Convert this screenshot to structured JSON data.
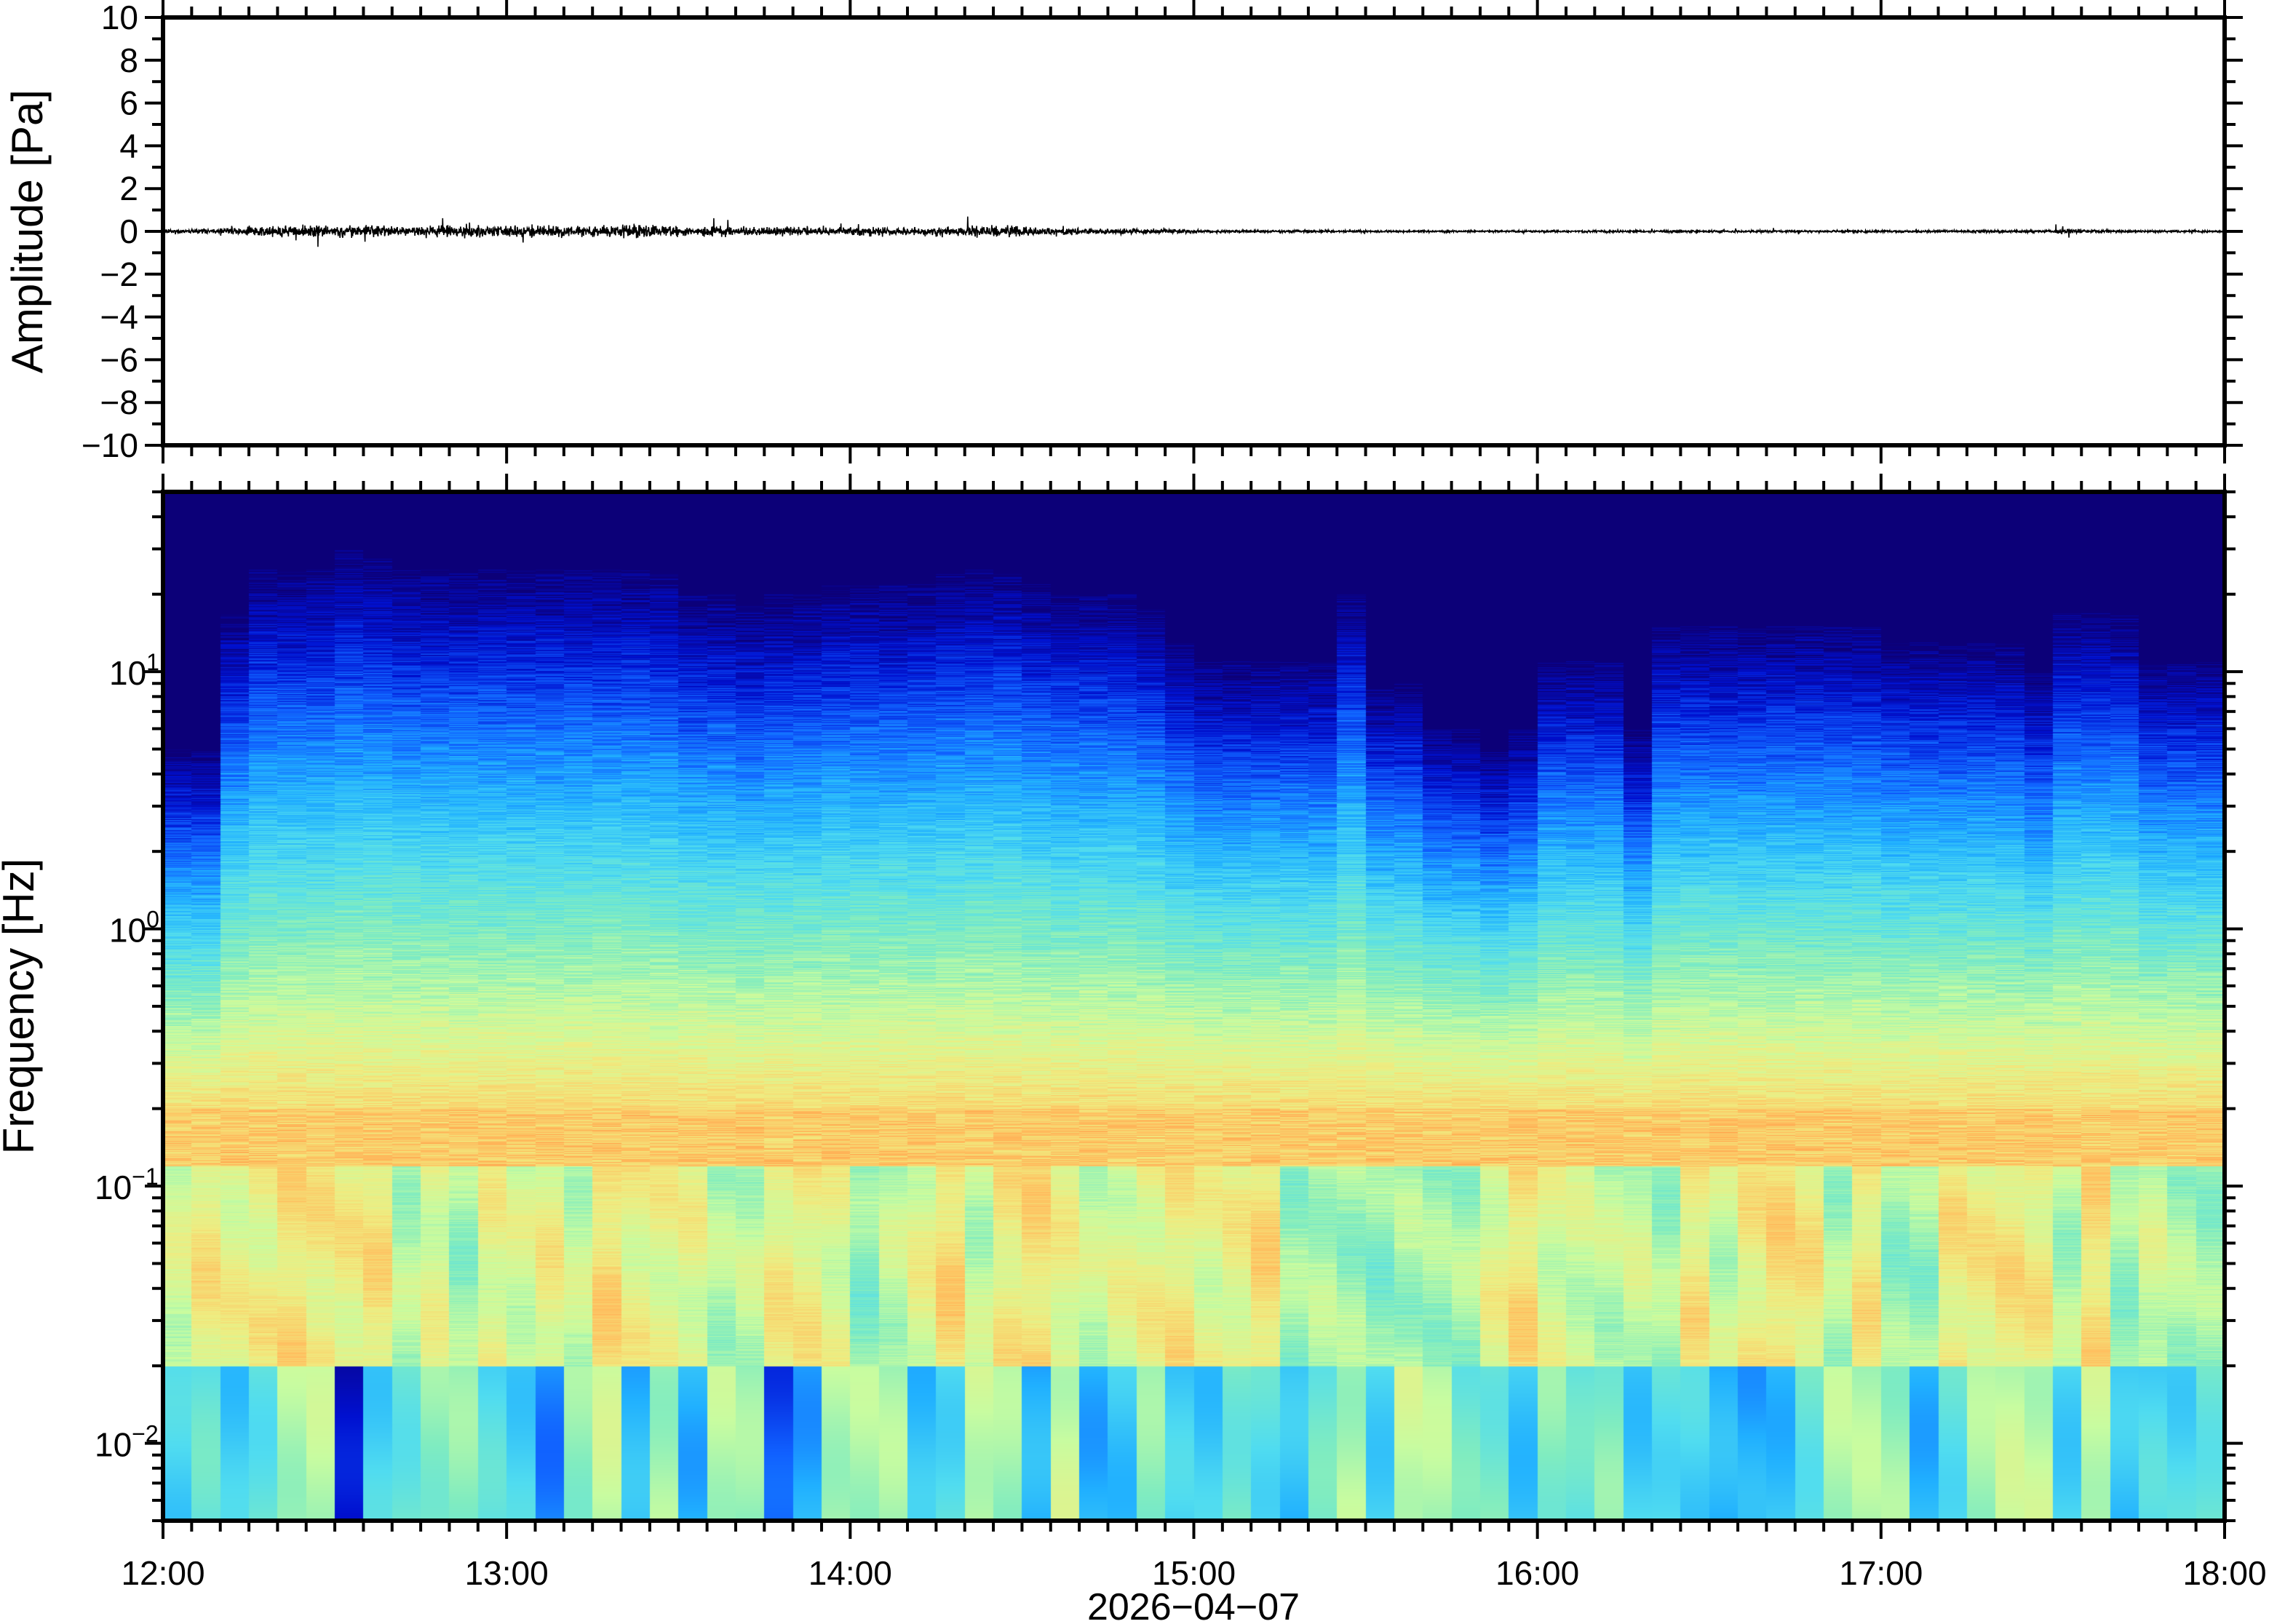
{
  "chart_data": [
    {
      "type": "line",
      "panel": "waveform",
      "ylabel": "Amplitude [Pa]",
      "ylim": [
        -10,
        10
      ],
      "yticks": [
        "10",
        "8",
        "6",
        "4",
        "2",
        "0",
        "−2",
        "−4",
        "−6",
        "−8",
        "−10"
      ],
      "ytick_values": [
        10,
        8,
        6,
        4,
        2,
        0,
        -2,
        -4,
        -6,
        -8,
        -10
      ],
      "xlim": [
        "12:00",
        "18:00"
      ],
      "line_color": "#000000",
      "amplitude_envelope_pa_per_5min": [
        0.1,
        0.12,
        0.2,
        0.28,
        0.3,
        0.32,
        0.3,
        0.3,
        0.28,
        0.3,
        0.32,
        0.3,
        0.3,
        0.3,
        0.28,
        0.32,
        0.35,
        0.3,
        0.25,
        0.25,
        0.22,
        0.22,
        0.2,
        0.2,
        0.22,
        0.22,
        0.22,
        0.25,
        0.25,
        0.28,
        0.22,
        0.18,
        0.15,
        0.15,
        0.12,
        0.12,
        0.08,
        0.08,
        0.07,
        0.07,
        0.07,
        0.06,
        0.06,
        0.06,
        0.05,
        0.05,
        0.05,
        0.05,
        0.06,
        0.06,
        0.06,
        0.06,
        0.06,
        0.06,
        0.06,
        0.06,
        0.06,
        0.06,
        0.06,
        0.06,
        0.06,
        0.06,
        0.06,
        0.06,
        0.06,
        0.06,
        0.12,
        0.08,
        0.06,
        0.06,
        0.06,
        0.06
      ]
    },
    {
      "type": "heatmap",
      "panel": "spectrogram",
      "ylabel": "Frequency [Hz]",
      "yscale": "log",
      "ylim": [
        0.005,
        50
      ],
      "yticks": [
        {
          "base": "10",
          "exp": "1",
          "value": 10
        },
        {
          "base": "10",
          "exp": "0",
          "value": 1
        },
        {
          "base": "10",
          "exp": "−1",
          "value": 0.1
        },
        {
          "base": "10",
          "exp": "−2",
          "value": 0.01
        }
      ],
      "colormap": "jet",
      "colormap_stops": [
        "#0c0078",
        "#0010d0",
        "#1060ff",
        "#20b0ff",
        "#50dcf0",
        "#80ecc0",
        "#c8fca0",
        "#f0ec80",
        "#ffc060",
        "#ff9040"
      ],
      "segment_minutes": 5,
      "peak_band_hz": [
        0.12,
        0.25
      ],
      "upper_energy_cutoff_hz_per_5min": [
        5,
        5,
        17,
        25,
        25,
        25,
        30,
        28,
        25,
        25,
        25,
        25,
        25,
        25,
        25,
        25,
        25,
        24,
        20,
        20,
        18,
        20,
        20,
        22,
        22,
        22,
        22,
        24,
        25,
        25,
        22,
        20,
        20,
        20,
        18,
        13,
        11,
        11,
        11,
        11,
        11,
        20,
        9,
        9,
        6,
        6,
        5,
        6,
        11,
        11,
        11,
        6,
        15,
        15,
        15,
        15,
        15,
        15,
        15,
        15,
        13,
        13,
        13,
        13,
        13,
        10,
        17,
        17,
        17,
        11,
        11,
        11
      ]
    }
  ],
  "xaxis": {
    "ticks": [
      "12:00",
      "13:00",
      "14:00",
      "15:00",
      "16:00",
      "17:00",
      "18:00"
    ],
    "label": "2026−04−07"
  }
}
